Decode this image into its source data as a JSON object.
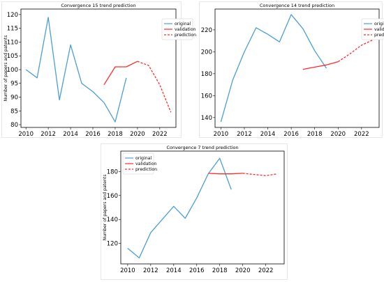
{
  "chart_data": [
    {
      "type": "line",
      "title": "Convergence 15 trend prediction",
      "ylabel": "Number of papers and patents",
      "xlim": [
        2009.55,
        2023.45
      ],
      "ylim": [
        79,
        122
      ],
      "xticks": [
        2010,
        2012,
        2014,
        2016,
        2018,
        2020,
        2022
      ],
      "yticks": [
        80,
        85,
        90,
        95,
        100,
        105,
        110,
        115,
        120
      ],
      "legend": "top-right",
      "series": [
        {
          "name": "original",
          "color": "#4a9fd5",
          "style": "solid",
          "x": [
            2010,
            2011,
            2012,
            2013,
            2014,
            2015,
            2016,
            2017,
            2018,
            2019
          ],
          "y": [
            100,
            97,
            119,
            89,
            109,
            95,
            92,
            88,
            81,
            97
          ]
        },
        {
          "name": "validation",
          "color": "#ff2a2a",
          "style": "solid",
          "x": [
            2017,
            2018,
            2019,
            2020
          ],
          "y": [
            94.5,
            101,
            101,
            103
          ]
        },
        {
          "name": "prediction",
          "color": "#ff2a2a",
          "style": "dashed",
          "x": [
            2020,
            2021,
            2022,
            2023
          ],
          "y": [
            103,
            101.5,
            94.5,
            84.5
          ]
        }
      ]
    },
    {
      "type": "line",
      "title": "Convergence 14 trend prediction",
      "ylabel": "",
      "xlim": [
        2009.5,
        2023.5
      ],
      "ylim": [
        131,
        239
      ],
      "xticks": [
        2010,
        2012,
        2014,
        2016,
        2018,
        2020,
        2022
      ],
      "yticks": [
        140,
        160,
        180,
        200,
        220
      ],
      "legend": "top-right",
      "series": [
        {
          "name": "original",
          "color": "#4a9fd5",
          "style": "solid",
          "x": [
            2010,
            2011,
            2012,
            2013,
            2014,
            2015,
            2016,
            2017,
            2018,
            2019
          ],
          "y": [
            136,
            174,
            200,
            222,
            216,
            209,
            234,
            221,
            201,
            185
          ]
        },
        {
          "name": "validation",
          "color": "#ff2a2a",
          "style": "solid",
          "x": [
            2017,
            2018,
            2019,
            2020
          ],
          "y": [
            184,
            186,
            188,
            191
          ]
        },
        {
          "name": "prediction",
          "color": "#ff2a2a",
          "style": "dashed",
          "x": [
            2020,
            2021,
            2022,
            2023
          ],
          "y": [
            191,
            198,
            206,
            211
          ]
        }
      ]
    },
    {
      "type": "line",
      "title": "Convergence 7 trend prediction",
      "ylabel": "Number of papers and patents",
      "xlim": [
        2009.4,
        2023.6
      ],
      "ylim": [
        103,
        197
      ],
      "xticks": [
        2010,
        2012,
        2014,
        2016,
        2018,
        2020,
        2022
      ],
      "yticks": [
        120,
        140,
        160,
        180
      ],
      "legend": "top-left",
      "series": [
        {
          "name": "original",
          "color": "#4a9fd5",
          "style": "solid",
          "x": [
            2010,
            2011,
            2012,
            2013,
            2014,
            2015,
            2016,
            2017,
            2018,
            2019
          ],
          "y": [
            116,
            108,
            129,
            140,
            151,
            141,
            158,
            178,
            191,
            165
          ]
        },
        {
          "name": "validation",
          "color": "#ff2a2a",
          "style": "solid",
          "x": [
            2017,
            2018,
            2019,
            2020
          ],
          "y": [
            178.5,
            178,
            178,
            178.5
          ]
        },
        {
          "name": "prediction",
          "color": "#ff2a2a",
          "style": "dashed",
          "x": [
            2020,
            2021,
            2022,
            2023
          ],
          "y": [
            178.5,
            177.5,
            176.5,
            178
          ]
        }
      ]
    }
  ]
}
